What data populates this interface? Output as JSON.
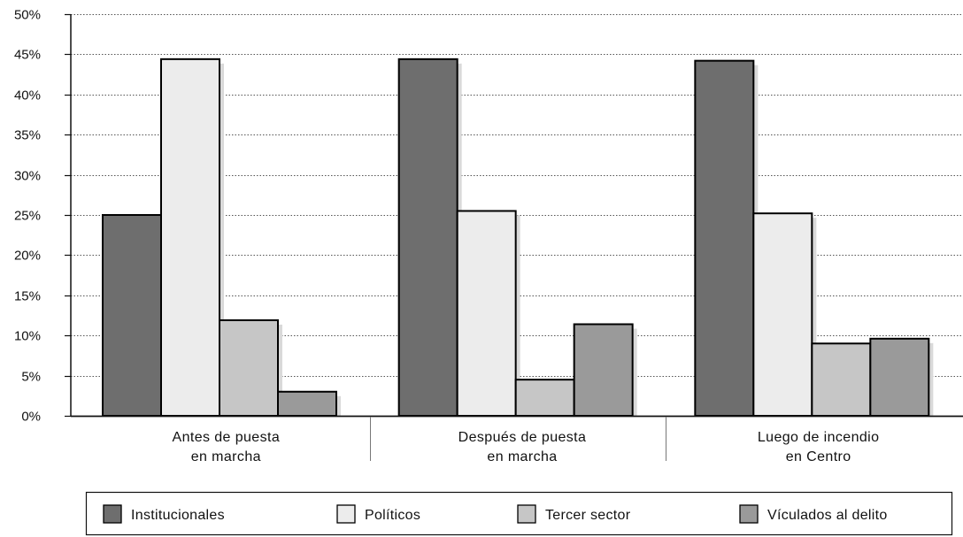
{
  "chart_data": {
    "type": "bar",
    "title": "",
    "xlabel": "",
    "ylabel": "",
    "categories": [
      [
        "Antes de puesta",
        "en marcha"
      ],
      [
        "Después de puesta",
        "en marcha"
      ],
      [
        "Luego de incendio",
        "en Centro"
      ]
    ],
    "series": [
      {
        "name": "Institucionales",
        "color": "#6e6e6e",
        "values": [
          25.0,
          44.4,
          44.2
        ]
      },
      {
        "name": "Políticos",
        "color": "#ececec",
        "values": [
          44.4,
          25.5,
          25.2
        ]
      },
      {
        "name": "Tercer sector",
        "color": "#c6c6c6",
        "values": [
          11.9,
          4.5,
          9.0
        ]
      },
      {
        "name": "Vículados al delito",
        "color": "#9a9a9a",
        "values": [
          3.0,
          11.4,
          9.6
        ]
      }
    ],
    "ylim": [
      0,
      50
    ],
    "yticks": [
      0,
      5,
      10,
      15,
      20,
      25,
      30,
      35,
      40,
      45,
      50
    ],
    "ytick_labels": [
      "0%",
      "5%",
      "10%",
      "15%",
      "20%",
      "25%",
      "30%",
      "35%",
      "40%",
      "45%",
      "50%"
    ],
    "grid": "horizontal dotted",
    "legend_position": "bottom",
    "bar_shadow": true
  }
}
